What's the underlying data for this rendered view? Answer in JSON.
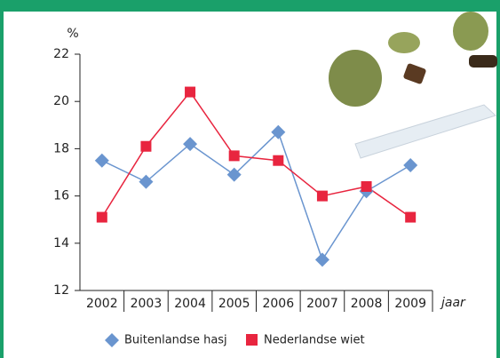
{
  "chart_data": {
    "type": "line",
    "y_label": "%",
    "x_label": "jaar",
    "categories": [
      "2002",
      "2003",
      "2004",
      "2005",
      "2006",
      "2007",
      "2008",
      "2009"
    ],
    "series": [
      {
        "name": "Buitenlandse hasj",
        "color": "#6a95cf",
        "marker": "diamond",
        "values": [
          17.5,
          16.6,
          18.2,
          16.9,
          18.7,
          13.3,
          16.2,
          17.3
        ]
      },
      {
        "name": "Nederlandse wiet",
        "color": "#e8253f",
        "marker": "square",
        "values": [
          15.1,
          18.1,
          20.4,
          17.7,
          17.5,
          16.0,
          16.4,
          15.1
        ]
      }
    ],
    "ylim": [
      12,
      22
    ],
    "yticks": [
      12,
      14,
      16,
      18,
      20,
      22
    ],
    "grid": false,
    "legend": "bottom"
  }
}
